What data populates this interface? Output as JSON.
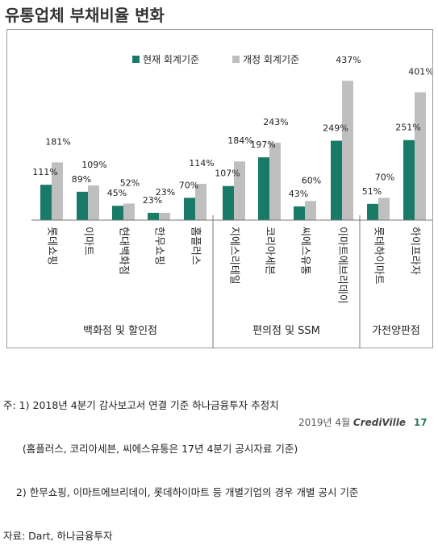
{
  "title": "유통업체 부채비율 변화",
  "chart_data": {
    "type": "bar",
    "legend_position": "top",
    "series": [
      {
        "name": "현재 회계기준",
        "color": "#1a7a68",
        "values": [
          111,
          89,
          45,
          23,
          70,
          107,
          197,
          43,
          249,
          51,
          251
        ]
      },
      {
        "name": "개정 회계기준",
        "color": "#bfbfbf",
        "values": [
          181,
          109,
          52,
          23,
          114,
          184,
          243,
          60,
          437,
          70,
          401
        ]
      }
    ],
    "categories": [
      "롯데쇼핑",
      "이마트",
      "현대백화점",
      "한무쇼핑",
      "홈플러스",
      "지에스리테일",
      "코리아세븐",
      "씨에스유통",
      "이마트에브리데이",
      "롯데하이마트",
      "하이프라자"
    ],
    "value_labels": [
      [
        "111%",
        "181%"
      ],
      [
        "89%",
        "109%"
      ],
      [
        "45%",
        "52%"
      ],
      [
        "23%",
        "23%"
      ],
      [
        "70%",
        "114%"
      ],
      [
        "107%",
        "184%"
      ],
      [
        "197%",
        "243%"
      ],
      [
        "43%",
        "60%"
      ],
      [
        "249%",
        "437%"
      ],
      [
        "51%",
        "70%"
      ],
      [
        "251%",
        "401%"
      ]
    ],
    "groups": [
      {
        "label": "백화점 및 할인점",
        "categories": [
          0,
          1,
          2,
          3,
          4
        ]
      },
      {
        "label": "편의점 및 SSM",
        "categories": [
          5,
          6,
          7,
          8
        ]
      },
      {
        "label": "가전양판점",
        "categories": [
          9,
          10
        ]
      }
    ],
    "grid": false
  },
  "notes": [
    "주: 1) 2018년 4분기 감사보고서 연결 기준 하나금융투자 추정치",
    "      (홈플러스, 코리아세븐, 씨에스유통은 17년 4분기 공시자료 기준)",
    "    2) 한무쇼핑, 이마트에브리데이, 롯데하이마트 등 개별기업의 경우 개별 공시 기준",
    "자료: Dart, 하나금융투자"
  ],
  "footer": {
    "date": "2019년 4월",
    "brand": "CrediVille",
    "page": "17"
  }
}
